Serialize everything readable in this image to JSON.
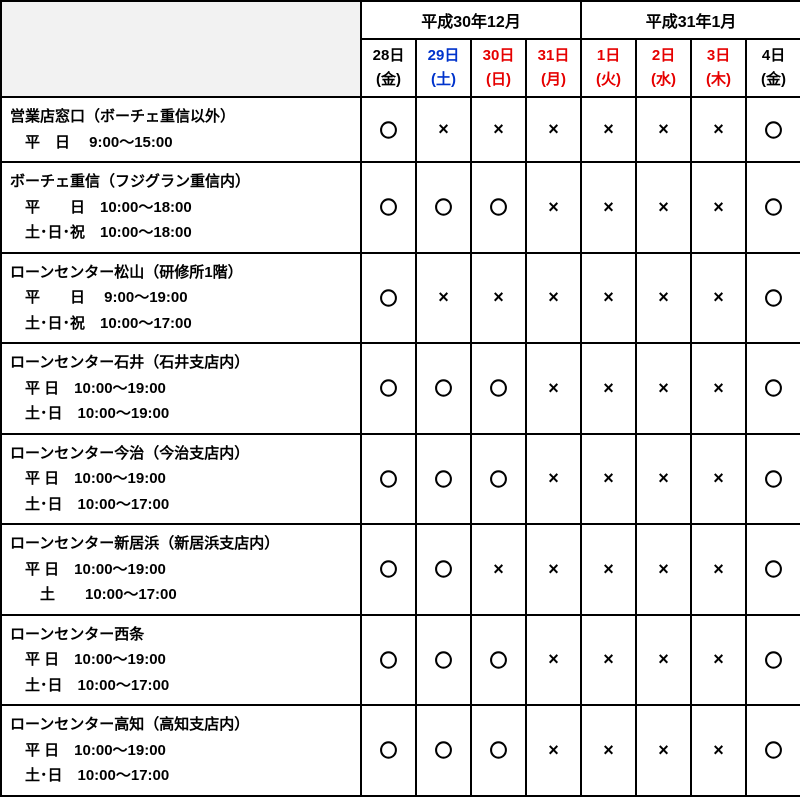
{
  "table": {
    "border_color": "#000000",
    "background_color": "#ffffff",
    "header_corner_bg": "#f2f2f2",
    "font_family": "Hiragino Kaku Gothic ProN",
    "months": [
      {
        "label": "平成30年12月",
        "span": 4
      },
      {
        "label": "平成31年1月",
        "span": 4
      }
    ],
    "days": [
      {
        "date": "28日",
        "dow": "(金)",
        "color": "#000000"
      },
      {
        "date": "29日",
        "dow": "(土)",
        "color": "#0033cc"
      },
      {
        "date": "30日",
        "dow": "(日)",
        "color": "#e60000"
      },
      {
        "date": "31日",
        "dow": "(月)",
        "color": "#e60000"
      },
      {
        "date": "1日",
        "dow": "(火)",
        "color": "#e60000"
      },
      {
        "date": "2日",
        "dow": "(水)",
        "color": "#e60000"
      },
      {
        "date": "3日",
        "dow": "(木)",
        "color": "#e60000"
      },
      {
        "date": "4日",
        "dow": "(金)",
        "color": "#000000"
      }
    ],
    "mark_open": "〇",
    "mark_closed": "×",
    "rows": [
      {
        "label": "営業店窓口（ボーチェ重信以外）\n　平　日　 9:00～15:00",
        "cells": [
          "〇",
          "×",
          "×",
          "×",
          "×",
          "×",
          "×",
          "〇"
        ]
      },
      {
        "label": "ボーチェ重信（フジグラン重信内）\n　平　　日　10:00～18:00\n　土･日･祝　10:00～18:00",
        "cells": [
          "〇",
          "〇",
          "〇",
          "×",
          "×",
          "×",
          "×",
          "〇"
        ]
      },
      {
        "label": "ローンセンター松山（研修所1階）\n　平　　日　 9:00～19:00\n　土･日･祝　10:00～17:00",
        "cells": [
          "〇",
          "×",
          "×",
          "×",
          "×",
          "×",
          "×",
          "〇"
        ]
      },
      {
        "label": "ローンセンター石井（石井支店内）\n　平 日　10:00～19:00\n　土･日　10:00～19:00",
        "cells": [
          "〇",
          "〇",
          "〇",
          "×",
          "×",
          "×",
          "×",
          "〇"
        ]
      },
      {
        "label": "ローンセンター今治（今治支店内）\n　平 日　10:00～19:00\n　土･日　10:00～17:00",
        "cells": [
          "〇",
          "〇",
          "〇",
          "×",
          "×",
          "×",
          "×",
          "〇"
        ]
      },
      {
        "label": "ローンセンター新居浜（新居浜支店内）\n　平 日　10:00～19:00\n　　土　　10:00～17:00",
        "cells": [
          "〇",
          "〇",
          "×",
          "×",
          "×",
          "×",
          "×",
          "〇"
        ]
      },
      {
        "label": "ローンセンター西条\n　平 日　10:00～19:00\n　土･日　10:00～17:00",
        "cells": [
          "〇",
          "〇",
          "〇",
          "×",
          "×",
          "×",
          "×",
          "〇"
        ]
      },
      {
        "label": "ローンセンター高知（高知支店内）\n　平 日　10:00～19:00\n　土･日　10:00～17:00",
        "cells": [
          "〇",
          "〇",
          "〇",
          "×",
          "×",
          "×",
          "×",
          "〇"
        ]
      }
    ]
  }
}
